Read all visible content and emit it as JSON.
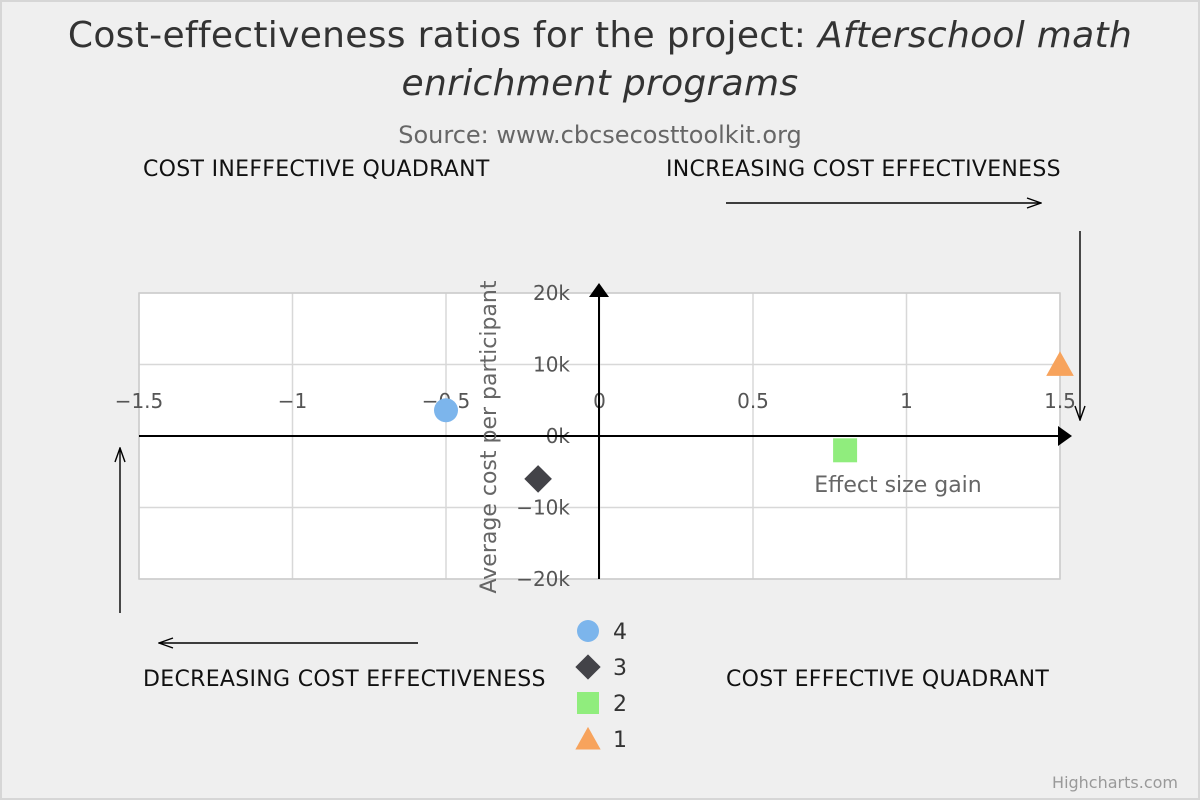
{
  "chart_data": {
    "type": "scatter",
    "title_prefix": "Cost-effectiveness ratios for the project: ",
    "title_italic": "Afterschool math enrichment programs",
    "subtitle": "Source: www.cbcsecosttoolkit.org",
    "xlabel": "Effect size gain",
    "ylabel": "Average cost per participant",
    "xlim": [
      -1.5,
      1.5
    ],
    "ylim": [
      -20000,
      20000
    ],
    "x_ticks": [
      {
        "value": -1.5,
        "label": "−1.5"
      },
      {
        "value": -1,
        "label": "−1"
      },
      {
        "value": -0.5,
        "label": "−0.5"
      },
      {
        "value": 0,
        "label": "0"
      },
      {
        "value": 0.5,
        "label": "0.5"
      },
      {
        "value": 1,
        "label": "1"
      },
      {
        "value": 1.5,
        "label": "1.5"
      }
    ],
    "y_ticks": [
      {
        "value": 20000,
        "label": "20k"
      },
      {
        "value": 10000,
        "label": "10k"
      },
      {
        "value": 0,
        "label": "0k"
      },
      {
        "value": -10000,
        "label": "−10k"
      },
      {
        "value": -20000,
        "label": "−20k"
      }
    ],
    "grid": true,
    "legend_position": "bottom-center",
    "series": [
      {
        "name": "4",
        "marker": "circle",
        "color": "#7cb5ec",
        "points": [
          {
            "x": -0.5,
            "y": 3600
          }
        ]
      },
      {
        "name": "3",
        "marker": "diamond",
        "color": "#434348",
        "points": [
          {
            "x": -0.2,
            "y": -6000
          }
        ]
      },
      {
        "name": "2",
        "marker": "square",
        "color": "#90ed7d",
        "points": [
          {
            "x": 0.8,
            "y": -2000
          }
        ]
      },
      {
        "name": "1",
        "marker": "triangle",
        "color": "#f7a35c",
        "points": [
          {
            "x": 1.5,
            "y": 10000
          }
        ]
      }
    ],
    "quadrant_labels": {
      "top_left": "COST INEFFECTIVE QUADRANT",
      "top_right": "INCREASING COST EFFECTIVENESS",
      "bottom_left": "DECREASING COST EFFECTIVENESS",
      "bottom_right": "COST EFFECTIVE QUADRANT"
    }
  },
  "credits": "Highcharts.com"
}
